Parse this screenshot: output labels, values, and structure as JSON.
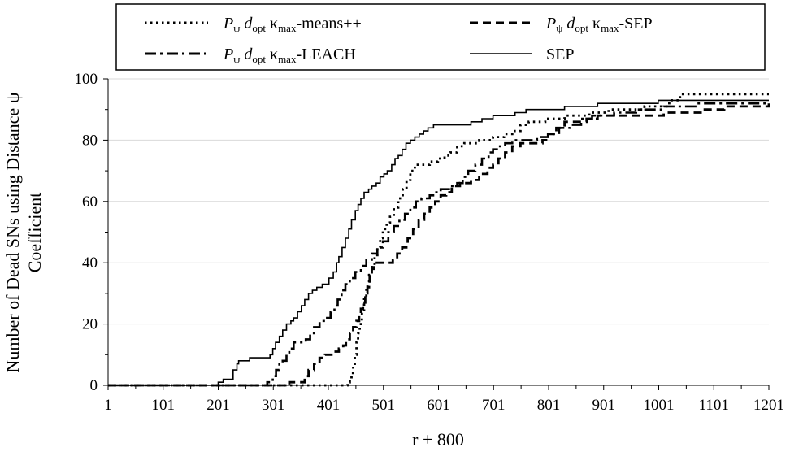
{
  "chart_data": {
    "type": "line",
    "title": "",
    "xlabel": "r + 800",
    "ylabel_line1": "Number of Dead SNs using Distance ψ",
    "ylabel_line2": "Coefficient",
    "xlim": [
      1,
      1201
    ],
    "ylim": [
      0,
      100
    ],
    "x_ticks": [
      1,
      101,
      201,
      301,
      401,
      501,
      601,
      701,
      801,
      901,
      1001,
      1101,
      1201
    ],
    "y_ticks": [
      0,
      20,
      40,
      60,
      80,
      100
    ],
    "grid": "horizontal",
    "legend_position": "top",
    "legend": [
      {
        "p": "P",
        "psi": "ψ",
        "d": "d",
        "opt": "opt",
        "kappa": "κ",
        "max": "max",
        "suffix": "-means++",
        "style": "dotted"
      },
      {
        "p": "P",
        "psi": "ψ",
        "d": "d",
        "opt": "opt",
        "kappa": "κ",
        "max": "max",
        "suffix": "-SEP",
        "style": "dashed"
      },
      {
        "p": "P",
        "psi": "ψ",
        "d": "d",
        "opt": "opt",
        "kappa": "κ",
        "max": "max",
        "suffix": "-LEACH",
        "style": "dashdot"
      },
      {
        "label": "SEP",
        "style": "solid"
      }
    ],
    "series": [
      {
        "style": "solid",
        "points": [
          [
            1,
            0
          ],
          [
            200,
            0
          ],
          [
            201,
            1
          ],
          [
            205,
            1
          ],
          [
            210,
            2
          ],
          [
            225,
            2
          ],
          [
            228,
            5
          ],
          [
            235,
            7
          ],
          [
            238,
            8
          ],
          [
            255,
            8
          ],
          [
            258,
            9
          ],
          [
            290,
            9
          ],
          [
            295,
            10
          ],
          [
            300,
            12
          ],
          [
            305,
            14
          ],
          [
            312,
            16
          ],
          [
            318,
            18
          ],
          [
            325,
            20
          ],
          [
            333,
            21
          ],
          [
            338,
            22
          ],
          [
            345,
            24
          ],
          [
            352,
            26
          ],
          [
            358,
            28
          ],
          [
            365,
            30
          ],
          [
            372,
            31
          ],
          [
            380,
            32
          ],
          [
            390,
            33
          ],
          [
            398,
            33
          ],
          [
            402,
            35
          ],
          [
            410,
            37
          ],
          [
            416,
            40
          ],
          [
            420,
            42
          ],
          [
            426,
            45
          ],
          [
            432,
            48
          ],
          [
            438,
            51
          ],
          [
            443,
            54
          ],
          [
            450,
            57
          ],
          [
            455,
            59
          ],
          [
            460,
            61
          ],
          [
            466,
            63
          ],
          [
            474,
            64
          ],
          [
            480,
            65
          ],
          [
            488,
            66
          ],
          [
            495,
            68
          ],
          [
            502,
            69
          ],
          [
            508,
            70
          ],
          [
            516,
            72
          ],
          [
            522,
            74
          ],
          [
            528,
            75
          ],
          [
            535,
            77
          ],
          [
            542,
            79
          ],
          [
            550,
            80
          ],
          [
            558,
            81
          ],
          [
            566,
            82
          ],
          [
            574,
            83
          ],
          [
            582,
            84
          ],
          [
            592,
            85
          ],
          [
            640,
            85
          ],
          [
            660,
            86
          ],
          [
            680,
            87
          ],
          [
            700,
            88
          ],
          [
            720,
            88
          ],
          [
            740,
            89
          ],
          [
            760,
            90
          ],
          [
            800,
            90
          ],
          [
            830,
            91
          ],
          [
            860,
            91
          ],
          [
            890,
            92
          ],
          [
            990,
            92
          ],
          [
            1000,
            93
          ],
          [
            1201,
            93
          ]
        ]
      },
      {
        "style": "dotted",
        "points": [
          [
            1,
            0
          ],
          [
            430,
            0
          ],
          [
            436,
            1
          ],
          [
            440,
            2
          ],
          [
            443,
            4
          ],
          [
            446,
            7
          ],
          [
            449,
            10
          ],
          [
            452,
            14
          ],
          [
            455,
            17
          ],
          [
            458,
            20
          ],
          [
            462,
            24
          ],
          [
            466,
            28
          ],
          [
            470,
            32
          ],
          [
            475,
            36
          ],
          [
            480,
            39
          ],
          [
            485,
            42
          ],
          [
            490,
            45
          ],
          [
            495,
            48
          ],
          [
            500,
            51
          ],
          [
            507,
            53
          ],
          [
            513,
            55
          ],
          [
            520,
            58
          ],
          [
            528,
            61
          ],
          [
            536,
            64
          ],
          [
            543,
            67
          ],
          [
            550,
            70
          ],
          [
            558,
            72
          ],
          [
            575,
            72
          ],
          [
            585,
            73
          ],
          [
            595,
            73
          ],
          [
            600,
            74
          ],
          [
            612,
            75
          ],
          [
            622,
            76
          ],
          [
            635,
            78
          ],
          [
            648,
            79
          ],
          [
            660,
            79
          ],
          [
            675,
            80
          ],
          [
            690,
            80
          ],
          [
            700,
            81
          ],
          [
            720,
            82
          ],
          [
            735,
            83
          ],
          [
            750,
            85
          ],
          [
            765,
            86
          ],
          [
            780,
            86
          ],
          [
            795,
            87
          ],
          [
            810,
            87
          ],
          [
            830,
            88
          ],
          [
            855,
            88
          ],
          [
            875,
            89
          ],
          [
            890,
            89
          ],
          [
            910,
            90
          ],
          [
            950,
            90
          ],
          [
            975,
            91
          ],
          [
            1000,
            91
          ],
          [
            1020,
            93
          ],
          [
            1040,
            94
          ],
          [
            1045,
            95
          ],
          [
            1201,
            95
          ]
        ]
      },
      {
        "style": "dashed",
        "points": [
          [
            1,
            0
          ],
          [
            325,
            0
          ],
          [
            330,
            1
          ],
          [
            350,
            1
          ],
          [
            358,
            3
          ],
          [
            365,
            5
          ],
          [
            375,
            7
          ],
          [
            385,
            9
          ],
          [
            395,
            10
          ],
          [
            410,
            11
          ],
          [
            420,
            12
          ],
          [
            428,
            13
          ],
          [
            433,
            15
          ],
          [
            440,
            17
          ],
          [
            446,
            19
          ],
          [
            452,
            21
          ],
          [
            457,
            23
          ],
          [
            460,
            25
          ],
          [
            464,
            27
          ],
          [
            468,
            30
          ],
          [
            472,
            33
          ],
          [
            476,
            36
          ],
          [
            480,
            38
          ],
          [
            484,
            40
          ],
          [
            510,
            40
          ],
          [
            518,
            41
          ],
          [
            526,
            43
          ],
          [
            535,
            45
          ],
          [
            545,
            48
          ],
          [
            555,
            51
          ],
          [
            565,
            54
          ],
          [
            575,
            56
          ],
          [
            585,
            58
          ],
          [
            595,
            60
          ],
          [
            605,
            62
          ],
          [
            615,
            63
          ],
          [
            625,
            65
          ],
          [
            640,
            66
          ],
          [
            660,
            67
          ],
          [
            675,
            69
          ],
          [
            690,
            71
          ],
          [
            700,
            72
          ],
          [
            710,
            74
          ],
          [
            722,
            76
          ],
          [
            735,
            78
          ],
          [
            750,
            79
          ],
          [
            780,
            79
          ],
          [
            790,
            80
          ],
          [
            800,
            82
          ],
          [
            815,
            84
          ],
          [
            830,
            86
          ],
          [
            850,
            86
          ],
          [
            870,
            87
          ],
          [
            890,
            88
          ],
          [
            920,
            88
          ],
          [
            960,
            88
          ],
          [
            990,
            88
          ],
          [
            1010,
            89
          ],
          [
            1050,
            89
          ],
          [
            1080,
            90
          ],
          [
            1120,
            91
          ],
          [
            1160,
            91
          ],
          [
            1201,
            92
          ]
        ]
      },
      {
        "style": "dashdot",
        "points": [
          [
            1,
            0
          ],
          [
            280,
            0
          ],
          [
            290,
            1
          ],
          [
            300,
            3
          ],
          [
            306,
            5
          ],
          [
            312,
            7
          ],
          [
            318,
            8
          ],
          [
            325,
            10
          ],
          [
            330,
            12
          ],
          [
            338,
            14
          ],
          [
            352,
            14
          ],
          [
            360,
            15
          ],
          [
            368,
            17
          ],
          [
            375,
            19
          ],
          [
            385,
            21
          ],
          [
            395,
            22
          ],
          [
            405,
            24
          ],
          [
            412,
            26
          ],
          [
            418,
            28
          ],
          [
            425,
            31
          ],
          [
            432,
            33
          ],
          [
            440,
            35
          ],
          [
            450,
            37
          ],
          [
            460,
            39
          ],
          [
            470,
            41
          ],
          [
            480,
            43
          ],
          [
            490,
            45
          ],
          [
            500,
            47
          ],
          [
            510,
            50
          ],
          [
            520,
            52
          ],
          [
            530,
            54
          ],
          [
            540,
            56
          ],
          [
            550,
            58
          ],
          [
            560,
            60
          ],
          [
            570,
            61
          ],
          [
            585,
            62
          ],
          [
            595,
            63
          ],
          [
            605,
            64
          ],
          [
            620,
            65
          ],
          [
            635,
            66
          ],
          [
            645,
            68
          ],
          [
            655,
            70
          ],
          [
            668,
            72
          ],
          [
            680,
            74
          ],
          [
            692,
            76
          ],
          [
            700,
            77
          ],
          [
            710,
            78
          ],
          [
            722,
            79
          ],
          [
            735,
            80
          ],
          [
            760,
            80
          ],
          [
            780,
            81
          ],
          [
            800,
            82
          ],
          [
            820,
            84
          ],
          [
            840,
            85
          ],
          [
            860,
            87
          ],
          [
            880,
            88
          ],
          [
            900,
            88
          ],
          [
            920,
            89
          ],
          [
            940,
            89
          ],
          [
            960,
            90
          ],
          [
            990,
            90
          ],
          [
            1010,
            91
          ],
          [
            1040,
            91
          ],
          [
            1070,
            92
          ],
          [
            1201,
            92
          ]
        ]
      }
    ]
  }
}
